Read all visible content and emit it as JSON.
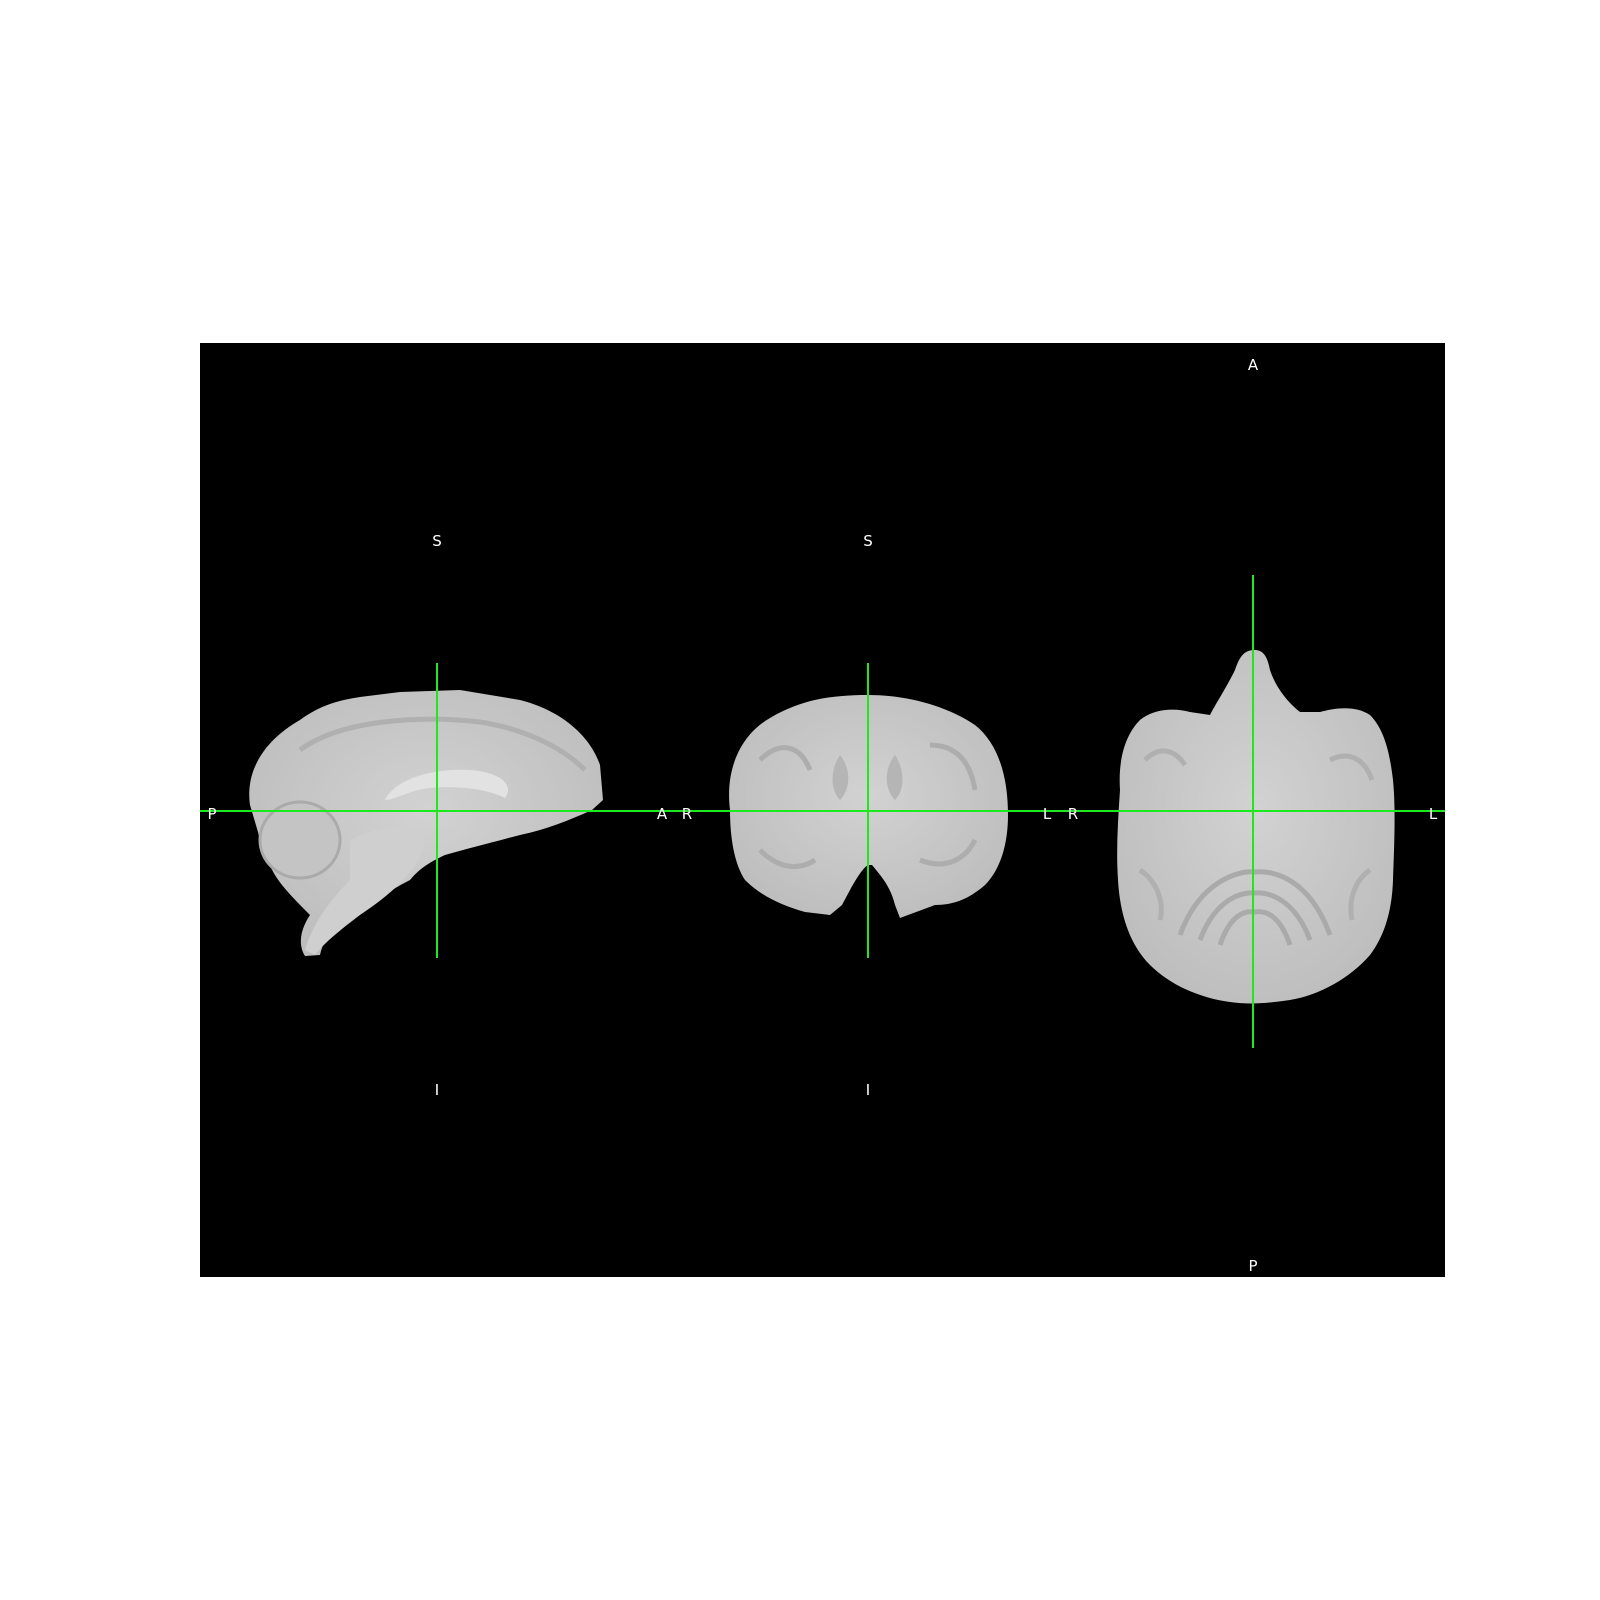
{
  "viewer": {
    "background_color": "#000000",
    "page_color": "#ffffff",
    "crosshair_color": "#1ee81e",
    "tissue_color": "#c8c8c8",
    "views": [
      {
        "name": "sagittal",
        "labels": {
          "top": "S",
          "bottom": "I",
          "left": "P",
          "right": "A"
        }
      },
      {
        "name": "coronal",
        "labels": {
          "top": "S",
          "bottom": "I",
          "left": "R",
          "right": "L"
        }
      },
      {
        "name": "axial",
        "labels": {
          "top": "A",
          "bottom": "P",
          "left": "R",
          "right": "L"
        }
      }
    ]
  }
}
